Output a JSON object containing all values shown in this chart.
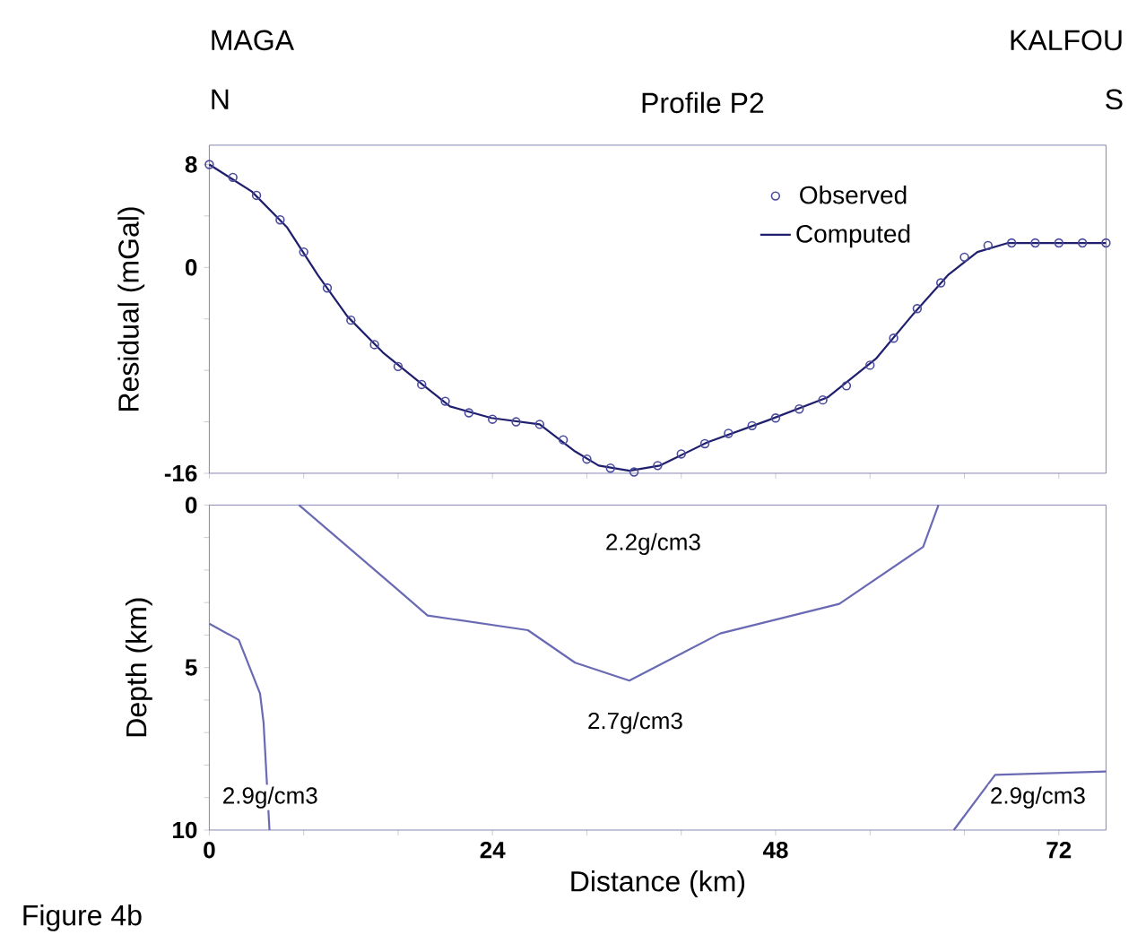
{
  "chart_data": [
    {
      "type": "line",
      "title": "Profile P2",
      "ylabel": "Residual (mGal)",
      "annotations": [
        "MAGA",
        "N",
        "KALFOU",
        "S"
      ],
      "xlim": [
        0,
        76
      ],
      "ylim": [
        -16,
        9.5
      ],
      "xticks": [
        0,
        8,
        16,
        24,
        32,
        40,
        48,
        56,
        64,
        72
      ],
      "yticks": [
        -16,
        {
          "value": -12,
          "label": null
        },
        {
          "value": -8,
          "label": null
        },
        {
          "value": -4,
          "label": null
        },
        0,
        {
          "value": 4,
          "label": null
        },
        8
      ],
      "tick_labels": "y",
      "legend": "top right",
      "grid": false,
      "series": [
        {
          "name": "Observed",
          "type": "scatter",
          "marker": "circle",
          "color": "#4a4a9c",
          "x": [
            0,
            2,
            4,
            6,
            8,
            10,
            12,
            14,
            16,
            18,
            20,
            22,
            24,
            26,
            28,
            30,
            32,
            34,
            36,
            38,
            40,
            42,
            44,
            46,
            48,
            50,
            52,
            54,
            56,
            58,
            60,
            62,
            64,
            66,
            68,
            70,
            72,
            74,
            76
          ],
          "values": [
            8.0,
            7.0,
            5.6,
            3.7,
            1.2,
            -1.6,
            -4.1,
            -6.0,
            -7.7,
            -9.1,
            -10.4,
            -11.3,
            -11.8,
            -12.0,
            -12.2,
            -13.4,
            -14.9,
            -15.6,
            -15.9,
            -15.4,
            -14.5,
            -13.7,
            -12.9,
            -12.3,
            -11.7,
            -11.0,
            -10.3,
            -9.2,
            -7.6,
            -5.5,
            -3.2,
            -1.2,
            0.8,
            1.7,
            1.9,
            1.9,
            1.9,
            1.9,
            1.9
          ]
        },
        {
          "name": "Computed",
          "type": "line",
          "color": "#1f1f6e",
          "x": [
            0,
            3.6,
            6.6,
            9.2,
            11.7,
            14.7,
            17.8,
            20.4,
            23.9,
            28,
            31,
            33,
            35.6,
            38.2,
            42.2,
            47.3,
            52.4,
            56.5,
            59.5,
            62.6,
            65.1,
            67.7,
            76
          ],
          "values": [
            8.0,
            5.9,
            3.1,
            -0.6,
            -3.8,
            -6.6,
            -8.9,
            -10.8,
            -11.7,
            -12.2,
            -14.3,
            -15.4,
            -15.8,
            -15.4,
            -13.6,
            -11.9,
            -10.1,
            -7.1,
            -3.8,
            -0.6,
            1.2,
            1.9,
            1.9
          ]
        }
      ]
    },
    {
      "type": "line",
      "xlabel": "Distance (km)",
      "ylabel": "Depth (km)",
      "annotations": [
        "2.2g/cm3",
        "2.7g/cm3",
        "2.9g/cm3",
        "2.9g/cm3",
        "Figure 4b"
      ],
      "xlim": [
        0,
        76
      ],
      "ylim": [
        10,
        0
      ],
      "xticks": [
        0,
        {
          "value": 8,
          "label": null
        },
        {
          "value": 16,
          "label": null
        },
        24,
        {
          "value": 32,
          "label": null
        },
        {
          "value": 40,
          "label": null
        },
        48,
        {
          "value": 56,
          "label": null
        },
        {
          "value": 64,
          "label": null
        },
        72
      ],
      "yticks": [
        0,
        {
          "value": 1,
          "label": null
        },
        {
          "value": 2,
          "label": null
        },
        {
          "value": 3,
          "label": null
        },
        {
          "value": 4,
          "label": null
        },
        5,
        {
          "value": 6,
          "label": null
        },
        {
          "value": 7,
          "label": null
        },
        {
          "value": 8,
          "label": null
        },
        {
          "value": 9,
          "label": null
        },
        10
      ],
      "grid": false,
      "series": [
        {
          "color": "#6a6ab4",
          "x": [
            7.6,
            15.8,
            18.5,
            27,
            31,
            35.6,
            43.3,
            53.4,
            60.5,
            61.8
          ],
          "values": [
            0,
            2.55,
            3.4,
            3.85,
            4.85,
            5.4,
            3.95,
            3.04,
            1.29,
            0
          ]
        },
        {
          "color": "#6a6ab4",
          "x": [
            0,
            2.5,
            4.3,
            4.6,
            5.1
          ],
          "values": [
            3.65,
            4.15,
            5.8,
            6.7,
            10
          ]
        },
        {
          "color": "#6a6ab4",
          "x": [
            63.1,
            66.6,
            76
          ],
          "values": [
            10,
            8.3,
            8.2
          ]
        }
      ]
    }
  ]
}
